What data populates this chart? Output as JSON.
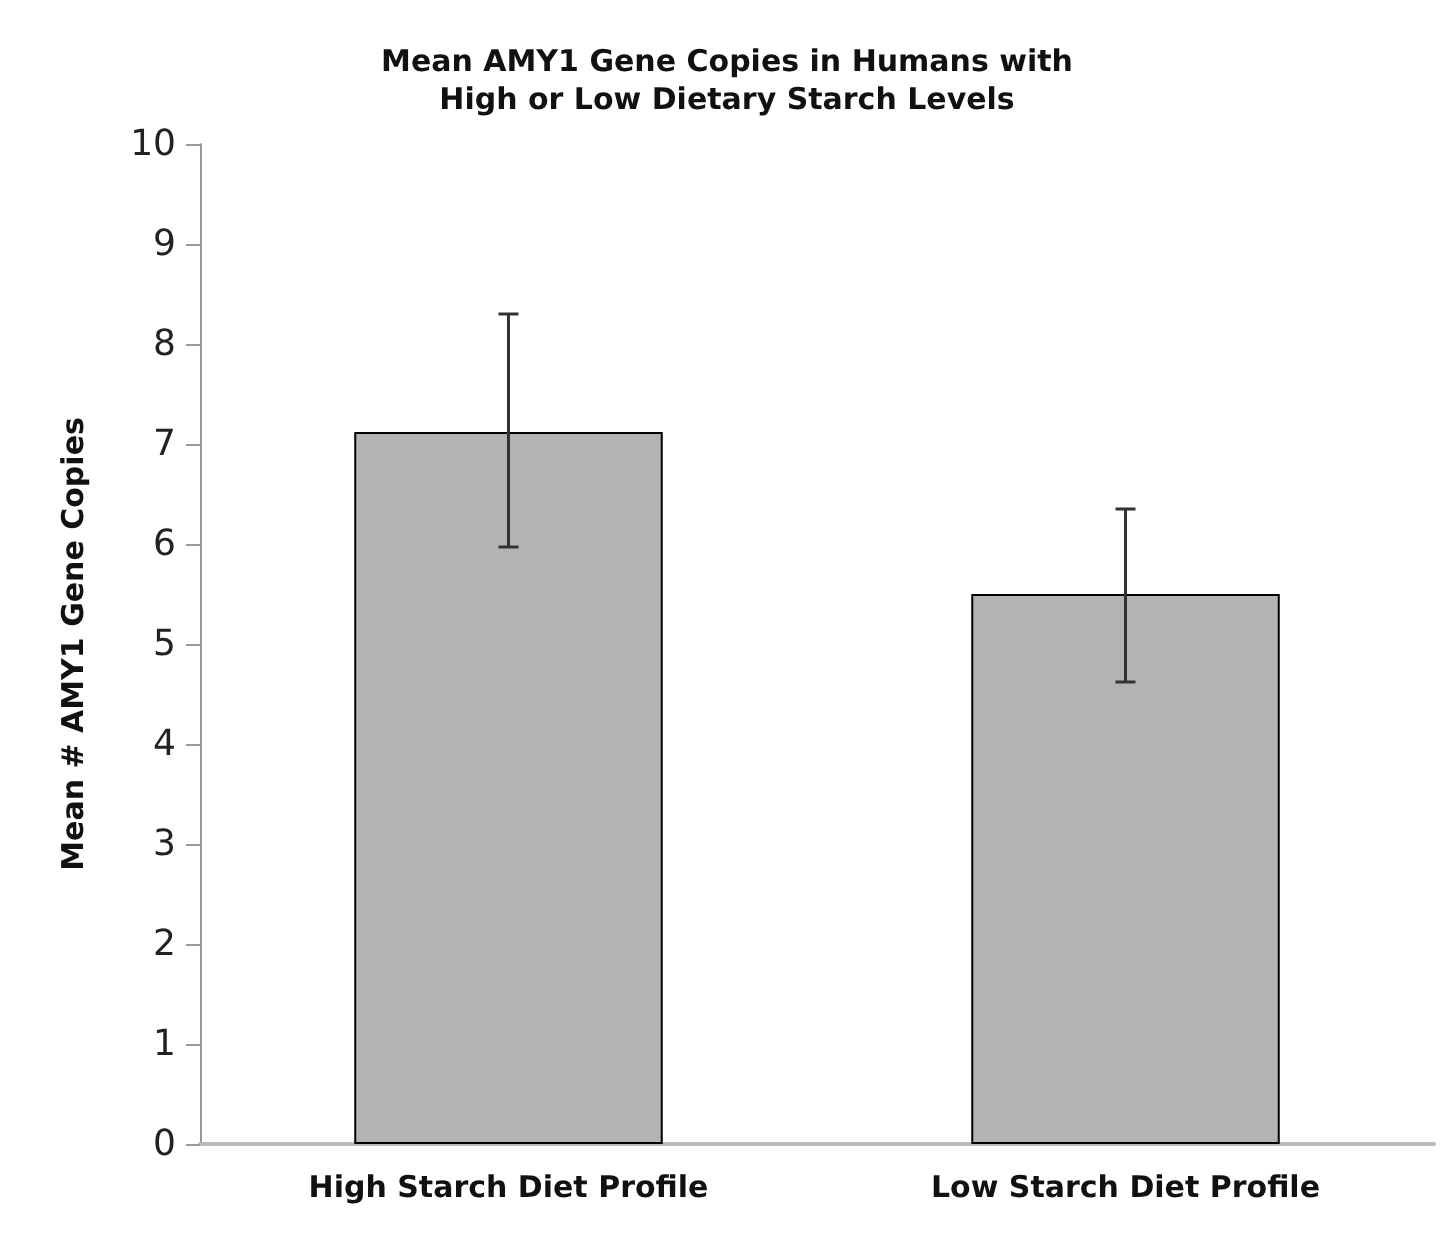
{
  "chart_data": {
    "type": "bar",
    "title": "Mean AMY1 Gene Copies in Humans with\nHigh or Low Dietary Starch Levels",
    "ylabel": "Mean # AMY1 Gene Copies",
    "categories": [
      "High Starch Diet Profile",
      "Low Starch Diet Profile"
    ],
    "values": [
      7.12,
      5.5
    ],
    "errors": [
      [
        5.97,
        8.3
      ],
      [
        4.62,
        6.35
      ]
    ],
    "color": "#b3b3b3",
    "ylim": [
      0,
      10
    ],
    "yticks": [
      0,
      1,
      2,
      3,
      4,
      5,
      6,
      7,
      8,
      9,
      10
    ],
    "grid": false
  }
}
